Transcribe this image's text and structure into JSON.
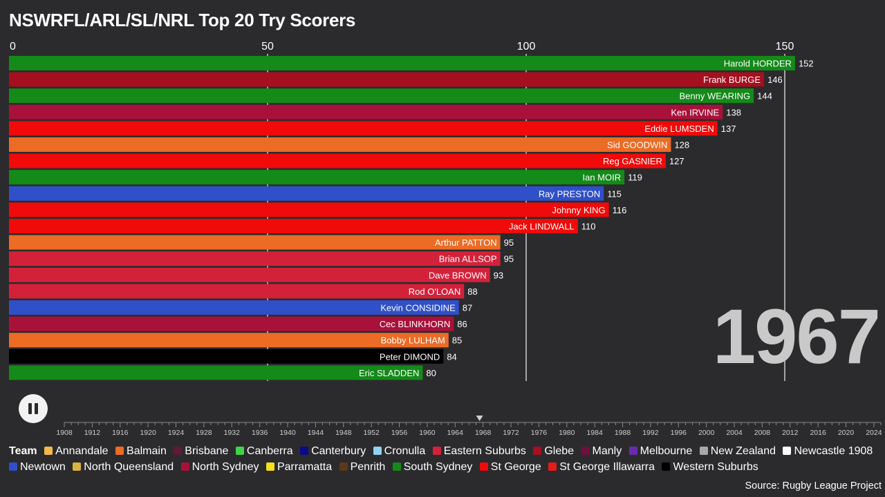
{
  "title": "NSWRFL/ARL/SL/NRL Top 20 Try Scorers",
  "year": "1967",
  "source": "Source: Rugby League Project",
  "controls": {
    "play_state": "pause"
  },
  "chart_data": {
    "type": "bar",
    "orientation": "horizontal",
    "title": "NSWRFL/ARL/SL/NRL Top 20 Try Scorers",
    "x_ticks": [
      0,
      50,
      100,
      150
    ],
    "grid": true,
    "categories": [
      "Harold HORDER",
      "Frank BURGE",
      "Benny WEARING",
      "Ken IRVINE",
      "Eddie LUMSDEN",
      "Sid GOODWIN",
      "Reg GASNIER",
      "Ian MOIR",
      "Ray PRESTON",
      "Johnny KING",
      "Jack LINDWALL",
      "Arthur PATTON",
      "Brian ALLSOP",
      "Dave BROWN",
      "Rod O'LOAN",
      "Kevin CONSIDINE",
      "Cec BLINKHORN",
      "Bobby LULHAM",
      "Peter DIMOND",
      "Eric SLADDEN"
    ],
    "values": [
      152,
      146,
      144,
      138,
      137,
      128,
      127,
      119,
      115,
      116,
      110,
      95,
      95,
      93,
      88,
      87,
      86,
      85,
      84,
      80
    ],
    "teams": [
      "South Sydney",
      "Glebe",
      "South Sydney",
      "North Sydney",
      "St George",
      "Balmain",
      "St George",
      "South Sydney",
      "Newtown",
      "St George",
      "St George",
      "Balmain",
      "Eastern Suburbs",
      "Eastern Suburbs",
      "Eastern Suburbs",
      "Newtown",
      "North Sydney",
      "Balmain",
      "Western Suburbs",
      "South Sydney"
    ]
  },
  "timeline": {
    "start": 1908,
    "end": 2025,
    "current": 1967.5,
    "labels": [
      "1908",
      "1912",
      "1916",
      "1920",
      "1924",
      "1928",
      "1932",
      "1936",
      "1940",
      "1944",
      "1948",
      "1952",
      "1956",
      "1960",
      "1964",
      "1968",
      "1972",
      "1976",
      "1980",
      "1984",
      "1988",
      "1992",
      "1996",
      "2000",
      "2004",
      "2008",
      "2012",
      "2016",
      "2020",
      "2024"
    ]
  },
  "legend": {
    "title": "Team",
    "items": [
      {
        "name": "Annandale",
        "color": "#f2b84b"
      },
      {
        "name": "Balmain",
        "color": "#ec6b25"
      },
      {
        "name": "Brisbane",
        "color": "#5e1a36"
      },
      {
        "name": "Canberra",
        "color": "#3fd34a"
      },
      {
        "name": "Canterbury",
        "color": "#0a0a8c"
      },
      {
        "name": "Cronulla",
        "color": "#8ed3ef"
      },
      {
        "name": "Eastern Suburbs",
        "color": "#d4213a"
      },
      {
        "name": "Glebe",
        "color": "#a50f1f"
      },
      {
        "name": "Manly",
        "color": "#6e0f3c"
      },
      {
        "name": "Melbourne",
        "color": "#6a2bb0"
      },
      {
        "name": "New Zealand",
        "color": "#a8a8a8"
      },
      {
        "name": "Newcastle 1908",
        "color": "#ffffff"
      },
      {
        "name": "Newtown",
        "color": "#2f50c8"
      },
      {
        "name": "North Queensland",
        "color": "#d8b440"
      },
      {
        "name": "North Sydney",
        "color": "#a8123a"
      },
      {
        "name": "Parramatta",
        "color": "#f7de1f"
      },
      {
        "name": "Penrith",
        "color": "#5a3a1a"
      },
      {
        "name": "South Sydney",
        "color": "#148a19"
      },
      {
        "name": "St George",
        "color": "#f00a0a"
      },
      {
        "name": "St George Illawarra",
        "color": "#e81a1a"
      },
      {
        "name": "Western Suburbs",
        "color": "#000000"
      }
    ]
  }
}
